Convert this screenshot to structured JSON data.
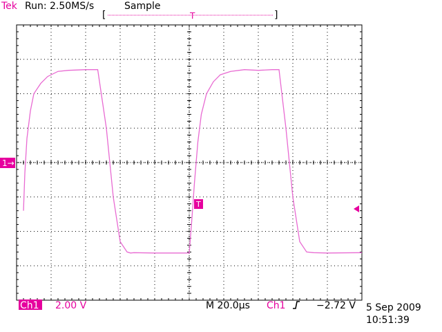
{
  "header": {
    "brand": "Tek",
    "run_status": "Run: 2.50MS/s",
    "acq_mode": "Sample"
  },
  "markers": {
    "channel_ground": "1→",
    "trigger_top": "T",
    "trigger_on_trace": "T"
  },
  "footer": {
    "channel": "Ch1",
    "volts_per_div": "2.00 V",
    "timebase": "M 20.0µs",
    "trigger_channel": "Ch1",
    "trigger_slope_icon": "rising-edge-icon",
    "trigger_level": "−2.72 V",
    "date": "5 Sep 2009",
    "time": "10:51:39"
  },
  "colors": {
    "trace": "#e86ad2",
    "accent": "#e6009e",
    "graticule": "#000000"
  },
  "chart_data": {
    "type": "line",
    "x_units": "divisions",
    "y_units": "divisions",
    "xlim": [
      0,
      10
    ],
    "ylim": [
      -4,
      4
    ],
    "grid": true,
    "series": [
      {
        "x": [
          0.2,
          0.24,
          0.3,
          0.4,
          0.5,
          0.7,
          0.9,
          1.2,
          1.5,
          2.0,
          2.35,
          2.6,
          2.8,
          3.0,
          3.2,
          3.3,
          3.4,
          4.0,
          5.0,
          5.08,
          5.15,
          5.25,
          5.35,
          5.5,
          5.7,
          5.9,
          6.2,
          6.6,
          7.0,
          7.4,
          7.6,
          7.8,
          8.0,
          8.2,
          8.4,
          8.6,
          9.0,
          10.0
        ],
        "y": [
          -1.4,
          -0.3,
          0.7,
          1.5,
          2.0,
          2.3,
          2.5,
          2.65,
          2.68,
          2.7,
          2.7,
          1.0,
          -1.0,
          -2.3,
          -2.6,
          -2.63,
          -2.62,
          -2.63,
          -2.63,
          -1.6,
          -0.6,
          0.6,
          1.4,
          2.0,
          2.35,
          2.55,
          2.65,
          2.7,
          2.68,
          2.7,
          2.7,
          1.0,
          -1.0,
          -2.3,
          -2.6,
          -2.62,
          -2.63,
          -2.62
        ]
      }
    ]
  }
}
